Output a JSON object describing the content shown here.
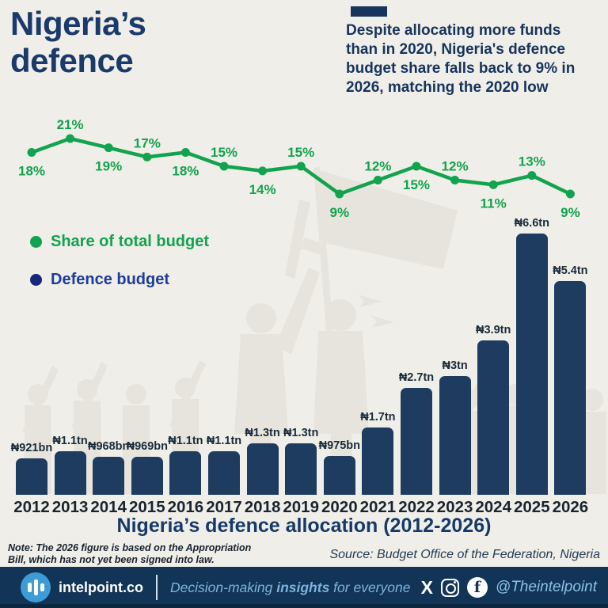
{
  "page": {
    "background": "#f0eee8",
    "accent_navy": "#16345c"
  },
  "header": {
    "title": "Nigeria’s\ndefence",
    "subtitle": "Despite allocating more funds\nthan in 2020, Nigeria's defence\nbudget share falls back to 9% in\n2026, matching the 2020 low"
  },
  "legend": [
    {
      "label": "Share of total budget",
      "color": "#12a34e",
      "dot_color": "#12a34e"
    },
    {
      "label": "Defence budget",
      "color": "#1d3c9c",
      "dot_color": "#14297e"
    }
  ],
  "chart_data": {
    "type": "combo-line-bar",
    "title": "Nigeria’s defence allocation (2012-2026)",
    "categories": [
      2012,
      2013,
      2014,
      2015,
      2016,
      2017,
      2018,
      2019,
      2020,
      2021,
      2022,
      2023,
      2024,
      2025,
      2026
    ],
    "series": [
      {
        "name": "Share of total budget",
        "type": "line",
        "unit": "%",
        "color": "#12a34e",
        "values": [
          18,
          21,
          19,
          17,
          18,
          15,
          14,
          15,
          9,
          12,
          15,
          12,
          11,
          13,
          9
        ],
        "labels": [
          "18%",
          "21%",
          "19%",
          "17%",
          "18%",
          "15%",
          "14%",
          "15%",
          "9%",
          "12%",
          "15%",
          "12%",
          "11%",
          "13%",
          "9%"
        ]
      },
      {
        "name": "Defence budget",
        "type": "bar",
        "unit": "NGN trillions",
        "color": "#1e3b60",
        "values_tn": [
          0.921,
          1.1,
          0.968,
          0.969,
          1.1,
          1.1,
          1.3,
          1.3,
          0.975,
          1.7,
          2.7,
          3.0,
          3.9,
          6.6,
          5.4
        ],
        "labels": [
          "₦921bn",
          "₦1.1tn",
          "₦968bn",
          "₦969bn",
          "₦1.1tn",
          "₦1.1tn",
          "₦1.3tn",
          "₦1.3tn",
          "₦975bn",
          "₦1.7tn",
          "₦2.7tn",
          "₦3tn",
          "₦3.9tn",
          "₦6.6tn",
          "₦5.4tn"
        ]
      }
    ],
    "ylim_line_pct": [
      9,
      21
    ],
    "grid": false,
    "legend_position": "left-middle"
  },
  "footnote": {
    "note": "Note: The 2026 figure is based on the Appropriation\nBill, which has not yet been signed into law.",
    "source": "Source: Budget Office of the Federation, Nigeria"
  },
  "footer": {
    "brand": "intelpoint.co",
    "tagline_prefix": "Decision-making ",
    "tagline_bold": "insights",
    "tagline_suffix": " for everyone",
    "handle": "@Theintelpoint",
    "background": "#113457",
    "logo_color": "#3d9bd5"
  }
}
